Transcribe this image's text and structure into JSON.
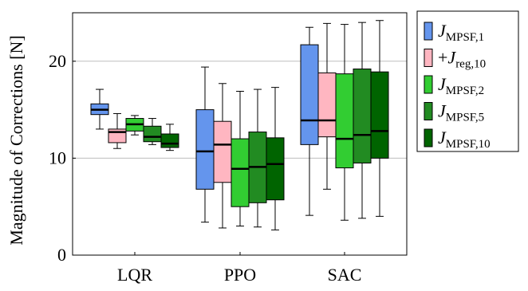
{
  "chart_data": {
    "type": "box",
    "ylabel": "Magnitude of Corrections [N]",
    "ylim": [
      0,
      25
    ],
    "yticks": [
      0,
      10,
      20
    ],
    "grid": true,
    "legend_position": "right",
    "categories": [
      "LQR",
      "PPO",
      "SAC"
    ],
    "series": [
      {
        "name": "J_MPSF,1",
        "legend": {
          "symbol": "J",
          "sub": "MPSF,1"
        },
        "color": "#6495ED",
        "boxes": [
          {
            "min": 13.0,
            "q1": 14.5,
            "median": 15.0,
            "q3": 15.6,
            "max": 17.1
          },
          {
            "min": 3.4,
            "q1": 6.8,
            "median": 10.7,
            "q3": 15.0,
            "max": 19.4
          },
          {
            "min": 4.1,
            "q1": 11.4,
            "median": 13.9,
            "q3": 21.7,
            "max": 23.5
          }
        ]
      },
      {
        "name": "+J_reg,10",
        "legend": {
          "prefix": "+",
          "symbol": "J",
          "sub": "reg,10"
        },
        "color": "#FFB6C1",
        "boxes": [
          {
            "min": 11.0,
            "q1": 11.6,
            "median": 12.7,
            "q3": 13.0,
            "max": 14.6
          },
          {
            "min": 2.8,
            "q1": 7.5,
            "median": 11.4,
            "q3": 13.8,
            "max": 17.7
          },
          {
            "min": 6.8,
            "q1": 12.2,
            "median": 13.9,
            "q3": 18.8,
            "max": 23.9
          }
        ]
      },
      {
        "name": "J_MPSF,2",
        "legend": {
          "symbol": "J",
          "sub": "MPSF,2"
        },
        "color": "#32CD32",
        "boxes": [
          {
            "min": 12.4,
            "q1": 12.8,
            "median": 13.5,
            "q3": 14.1,
            "max": 14.4
          },
          {
            "min": 3.0,
            "q1": 5.0,
            "median": 8.9,
            "q3": 12.0,
            "max": 16.9
          },
          {
            "min": 3.6,
            "q1": 9.0,
            "median": 12.0,
            "q3": 18.7,
            "max": 23.8
          }
        ]
      },
      {
        "name": "J_MPSF,5",
        "legend": {
          "symbol": "J",
          "sub": "MPSF,5"
        },
        "color": "#228B22",
        "boxes": [
          {
            "min": 11.4,
            "q1": 11.7,
            "median": 12.2,
            "q3": 13.3,
            "max": 14.1
          },
          {
            "min": 2.9,
            "q1": 5.4,
            "median": 9.1,
            "q3": 12.7,
            "max": 17.1
          },
          {
            "min": 3.8,
            "q1": 9.5,
            "median": 12.4,
            "q3": 19.2,
            "max": 24.0
          }
        ]
      },
      {
        "name": "J_MPSF,10",
        "legend": {
          "symbol": "J",
          "sub": "MPSF,10"
        },
        "color": "#006400",
        "boxes": [
          {
            "min": 10.8,
            "q1": 11.1,
            "median": 11.5,
            "q3": 12.5,
            "max": 13.5
          },
          {
            "min": 2.6,
            "q1": 5.7,
            "median": 9.4,
            "q3": 12.1,
            "max": 17.3
          },
          {
            "min": 4.0,
            "q1": 10.0,
            "median": 12.8,
            "q3": 18.9,
            "max": 24.2
          }
        ]
      }
    ]
  }
}
